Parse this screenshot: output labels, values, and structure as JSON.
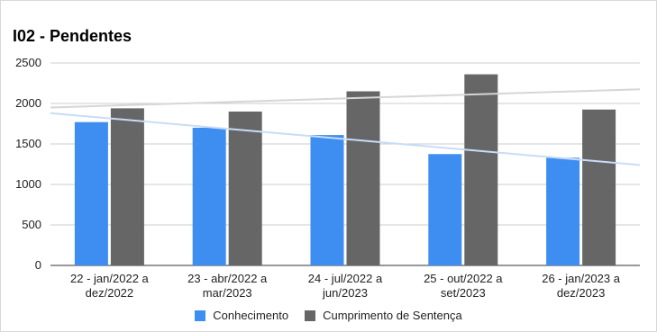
{
  "chart_data": {
    "type": "bar",
    "title": "I02 - Pendentes",
    "categories": [
      [
        "22 - jan/2022 a",
        "dez/2022"
      ],
      [
        "23 - abr/2022 a",
        "mar/2023"
      ],
      [
        "24 - jul/2022 a",
        "jun/2023"
      ],
      [
        "25 - out/2022 a",
        "set/2023"
      ],
      [
        "26 - jan/2023 a",
        "dez/2023"
      ]
    ],
    "series": [
      {
        "name": "Conhecimento",
        "color": "#3d8ef0",
        "values": [
          1770,
          1700,
          1610,
          1375,
          1330
        ]
      },
      {
        "name": "Cumprimento de Sentença",
        "color": "#666666",
        "values": [
          1940,
          1900,
          2150,
          2360,
          1925
        ]
      }
    ],
    "trendlines": [
      {
        "series": "Conhecimento",
        "color": "#c9dcf7",
        "start": 1880,
        "end": 1240
      },
      {
        "series": "Cumprimento de Sentença",
        "color": "#d6d6d6",
        "start": 1950,
        "end": 2175
      }
    ],
    "ylim": [
      0,
      2500
    ],
    "yticks": [
      "0",
      "500",
      "1000",
      "1500",
      "2000",
      "2500"
    ],
    "grid": true,
    "legend": "bottom"
  }
}
